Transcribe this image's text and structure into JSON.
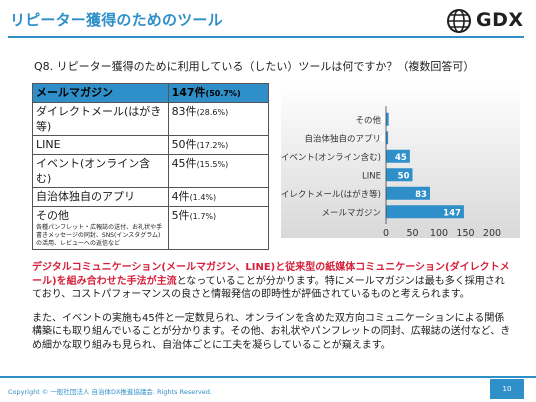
{
  "header": {
    "title": "リピーター獲得のためのツール",
    "logo_text": "GDX",
    "logo_icon": "globe-icon"
  },
  "question": "Q8. リピーター獲得のために利用している（したい）ツールは何ですか？（複数回答可）",
  "table": {
    "rows": [
      {
        "label": "メールマガジン",
        "count": "147件",
        "pct": "(50.7%)",
        "note": ""
      },
      {
        "label": "ダイレクトメール(はがき等)",
        "count": "83件",
        "pct": "(28.6%)",
        "note": ""
      },
      {
        "label": "LINE",
        "count": "50件",
        "pct": "(17.2%)",
        "note": ""
      },
      {
        "label": "イベント(オンライン含む)",
        "count": "45件",
        "pct": "(15.5%)",
        "note": ""
      },
      {
        "label": "自治体独自のアプリ",
        "count": "4件",
        "pct": "(1.4%)",
        "note": ""
      },
      {
        "label": "その他",
        "count": "5件",
        "pct": "(1.7%)",
        "note": "各種パンフレット・広報誌の送付、お礼状や手書きメッセージの同封、SNS(インスタグラム)の活用、レビューへの返信など"
      }
    ]
  },
  "chart_data": {
    "type": "bar",
    "orientation": "horizontal",
    "categories": [
      "その他",
      "自治体独自のアプリ",
      "イベント(オンライン含む)",
      "LINE",
      "ダイレクトメール(はがき等)",
      "メールマガジン"
    ],
    "values": [
      5,
      4,
      45,
      50,
      83,
      147
    ],
    "xlim": [
      0,
      200
    ],
    "xticks": [
      "0",
      "50",
      "100",
      "150",
      "200"
    ],
    "bar_color": "#2f8fc9",
    "grid": false,
    "title": "",
    "xlabel": "",
    "ylabel": ""
  },
  "body": {
    "p1_red": "デジタルコミュニケーション(メールマガジン、LINE)と従来型の紙媒体コミュニケーション(ダイレクトメール)を組み合わせた手法が主流",
    "p1_rest": "となっていることが分かります。特にメールマガジンは最も多く採用されており、コストパフォーマンスの良さと情報発信の即時性が評価されているものと考えられます。",
    "p2": "また、イベントの実施も45件と一定数見られ、オンラインを含めた双方向コミュニケーションによる関係構築にも取り組んでいることが分かります。その他、お礼状やパンフレットの同封、広報誌の送付など、きめ細かな取り組みも見られ、自治体ごとに工夫を凝らしていることが窺えます。"
  },
  "footer": {
    "copyright": "Copyright © 一般社団法人 自治体DX推進協議会. Rights Reserved.",
    "page": "10",
    "accent": "#2f8fc9"
  }
}
